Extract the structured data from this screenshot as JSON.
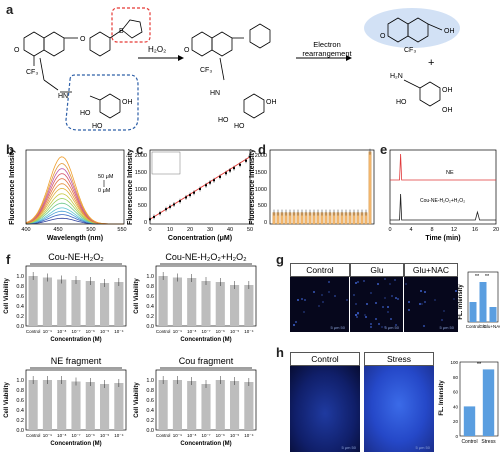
{
  "panel_labels": {
    "a": "a",
    "b": "b",
    "c": "c",
    "d": "d",
    "e": "e",
    "f": "f",
    "g": "g",
    "h": "h"
  },
  "scheme": {
    "reagent": "H₂O₂",
    "reagent_arrow_label": "H2O2",
    "rearrangement": "Electron rearrangement",
    "cf3": "CF₃",
    "plus": "+",
    "atoms": {
      "O": "O",
      "HN": "HN",
      "N": "N",
      "B": "B",
      "OH": "OH",
      "HO": "HO",
      "H2N": "H₂N"
    }
  },
  "chart_data": [
    {
      "id": "b",
      "type": "line",
      "xlabel": "Wavelength (nm)",
      "ylabel": "Fluorescence Intensity",
      "xlim": [
        400,
        550
      ],
      "x_ticks": [
        "400",
        "450",
        "500",
        "550"
      ],
      "annotations": [
        "50 μM",
        "0 μM"
      ],
      "peak_x": 455,
      "series_peaks": [
        170,
        280,
        380,
        480,
        620,
        760,
        900,
        1060,
        1200,
        1350,
        1500,
        1650,
        1800,
        2000
      ],
      "colors": [
        "#2c3e9c",
        "#3a68c2",
        "#4aa0d8",
        "#5ec4d2",
        "#72c98e",
        "#9bd15d",
        "#c8c844",
        "#e0b23a",
        "#e69440",
        "#e37345",
        "#d65a6a",
        "#c05aa8",
        "#e29a3c",
        "#f0a030"
      ]
    },
    {
      "id": "c",
      "type": "scatter",
      "xlabel": "Concentration (μM)",
      "ylabel": "Fluorescence Intensity",
      "xlim": [
        0,
        50
      ],
      "ylim": [
        0,
        2200
      ],
      "x_ticks": [
        "0",
        "10",
        "20",
        "30",
        "40",
        "50"
      ],
      "y_ticks": [
        "0",
        "500",
        "1000",
        "1500",
        "2000"
      ],
      "x": [
        0,
        2,
        5,
        8,
        10,
        12,
        15,
        18,
        20,
        22,
        25,
        28,
        30,
        32,
        35,
        38,
        40,
        42,
        45,
        48,
        50
      ],
      "y": [
        140,
        210,
        320,
        440,
        510,
        580,
        680,
        790,
        860,
        930,
        1040,
        1150,
        1230,
        1300,
        1400,
        1510,
        1590,
        1660,
        1760,
        1880,
        2000
      ],
      "fit_line": [
        [
          0,
          140
        ],
        [
          50,
          2000
        ]
      ]
    },
    {
      "id": "d",
      "type": "bar",
      "ylabel": "Fluorescence Intensity",
      "ylim": [
        0,
        2200
      ],
      "y_ticks": [
        "0",
        "500",
        "1000",
        "1500",
        "2000"
      ],
      "values": [
        340,
        340,
        340,
        340,
        340,
        340,
        340,
        340,
        340,
        340,
        340,
        340,
        340,
        340,
        340,
        340,
        340,
        340,
        340,
        340,
        340,
        340,
        340,
        340,
        2150
      ]
    },
    {
      "id": "e",
      "type": "line",
      "xlabel": "Time (min)",
      "x_ticks": [
        "0",
        "2",
        "4",
        "6",
        "8",
        "10",
        "12",
        "14",
        "16",
        "18",
        "20"
      ],
      "xlim": [
        0,
        20
      ],
      "series": [
        {
          "name": "NE",
          "color": "#e0393a",
          "peak_x": 2.0
        },
        {
          "name": "Cou-NE-H₂O₂+H₂O₂",
          "color": "#222222",
          "peak_x": 2.0,
          "second_peak_x": 16.5
        }
      ]
    },
    {
      "id": "f1",
      "type": "bar",
      "title": "Cou-NE-H₂O₂",
      "xlabel": "Concentration (M)",
      "ylabel": "Cell Viability",
      "ylim": [
        0,
        1.2
      ],
      "y_ticks": [
        "0.0",
        "0.2",
        "0.4",
        "0.6",
        "0.8",
        "1.0"
      ],
      "categories": [
        "Control",
        "10⁻⁹",
        "10⁻⁸",
        "10⁻⁷",
        "10⁻⁶",
        "10⁻⁵",
        "10⁻⁴"
      ],
      "values": [
        1.0,
        0.97,
        0.93,
        0.92,
        0.9,
        0.86,
        0.88
      ]
    },
    {
      "id": "f2",
      "type": "bar",
      "title": "Cou-NE-H₂O₂+H₂O₂",
      "xlabel": "Concentration (M)",
      "ylabel": "Cell Viability",
      "ylim": [
        0,
        1.2
      ],
      "y_ticks": [
        "0.0",
        "0.2",
        "0.4",
        "0.6",
        "0.8",
        "1.0"
      ],
      "categories": [
        "Control",
        "10⁻⁹",
        "10⁻⁸",
        "10⁻⁷",
        "10⁻⁶",
        "10⁻⁵",
        "10⁻⁴"
      ],
      "values": [
        1.0,
        0.97,
        0.96,
        0.9,
        0.88,
        0.82,
        0.82
      ]
    },
    {
      "id": "f3",
      "type": "bar",
      "title": "NE fragment",
      "xlabel": "Concentration (M)",
      "ylabel": "Cell Viability",
      "ylim": [
        0,
        1.2
      ],
      "y_ticks": [
        "0.0",
        "0.2",
        "0.4",
        "0.6",
        "0.8",
        "1.0"
      ],
      "categories": [
        "Control",
        "10⁻⁹",
        "10⁻⁸",
        "10⁻⁷",
        "10⁻⁶",
        "10⁻⁵",
        "10⁻⁴"
      ],
      "values": [
        1.0,
        1.0,
        1.0,
        0.97,
        0.96,
        0.92,
        0.94
      ]
    },
    {
      "id": "f4",
      "type": "bar",
      "title": "Cou fragment",
      "xlabel": "Concentration (M)",
      "ylabel": "Cell Viability",
      "ylim": [
        0,
        1.2
      ],
      "y_ticks": [
        "0.0",
        "0.2",
        "0.4",
        "0.6",
        "0.8",
        "1.0"
      ],
      "categories": [
        "Control",
        "10⁻⁹",
        "10⁻⁸",
        "10⁻⁷",
        "10⁻⁶",
        "10⁻⁵",
        "10⁻⁴"
      ],
      "values": [
        1.0,
        1.0,
        0.98,
        0.92,
        1.0,
        0.98,
        0.96
      ]
    },
    {
      "id": "g",
      "type": "bar",
      "ylabel": "FL. Intensity",
      "categories": [
        "Control",
        "Glu",
        "Glu+NAC"
      ],
      "values": [
        20,
        40,
        15
      ],
      "colors": [
        "#5a9ee0",
        "#5a9ee0",
        "#5a9ee0"
      ],
      "significance": [
        "**",
        "**"
      ]
    },
    {
      "id": "h",
      "type": "bar",
      "ylabel": "FL. Intensity",
      "ylim": [
        0,
        100
      ],
      "y_ticks": [
        "0",
        "20",
        "40",
        "60",
        "80",
        "100"
      ],
      "categories": [
        "Control",
        "Stress"
      ],
      "values": [
        40,
        90
      ],
      "significance": [
        "**"
      ]
    }
  ],
  "micrographs": {
    "g": [
      "Control",
      "Glu",
      "Glu+NAC"
    ],
    "h": [
      "Control",
      "Stress"
    ],
    "scale": "5 μm 50"
  }
}
